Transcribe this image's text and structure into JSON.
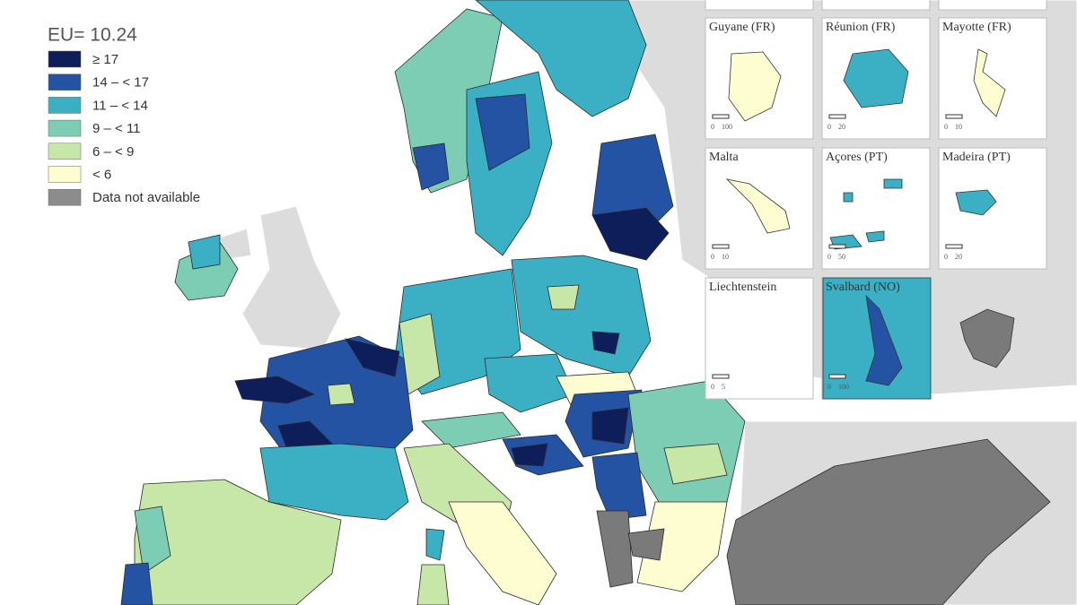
{
  "legend": {
    "title": "EU= 10.24",
    "items": [
      {
        "label": "≥ 17",
        "color": "#0d1e5a"
      },
      {
        "label": "14 – < 17",
        "color": "#2553a3"
      },
      {
        "label": "11 – < 14",
        "color": "#3bb0c4"
      },
      {
        "label": "9 – < 11",
        "color": "#7dcdb5"
      },
      {
        "label": "6 – < 9",
        "color": "#c6e7a8"
      },
      {
        "label": "< 6",
        "color": "#fefdd1"
      },
      {
        "label": "Data not available",
        "color": "#8c8c8c"
      }
    ]
  },
  "insets": [
    {
      "label": "Guyane (FR)",
      "scale_start": "0",
      "scale_end": "100"
    },
    {
      "label": "Réunion (FR)",
      "scale_start": "0",
      "scale_end": "20"
    },
    {
      "label": "Mayotte (FR)",
      "scale_start": "0",
      "scale_end": "10"
    },
    {
      "label": "Malta",
      "scale_start": "0",
      "scale_end": "10"
    },
    {
      "label": "Açores (PT)",
      "scale_start": "0",
      "scale_end": "50"
    },
    {
      "label": "Madeira (PT)",
      "scale_start": "0",
      "scale_end": "20"
    },
    {
      "label": "Liechtenstein",
      "scale_start": "0",
      "scale_end": "5"
    },
    {
      "label": "Svalbard (NO)",
      "scale_start": "0",
      "scale_end": "100"
    }
  ]
}
